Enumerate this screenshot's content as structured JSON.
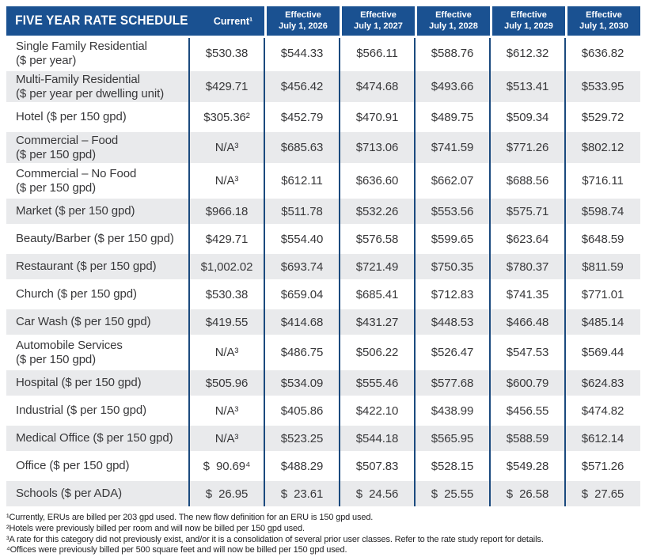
{
  "title": "FIVE YEAR RATE SCHEDULE",
  "columns": {
    "current_label": "Current¹",
    "effective": [
      {
        "line1": "Effective",
        "line2": "July 1, 2026"
      },
      {
        "line1": "Effective",
        "line2": "July 1, 2027"
      },
      {
        "line1": "Effective",
        "line2": "July 1, 2028"
      },
      {
        "line1": "Effective",
        "line2": "July 1, 2029"
      },
      {
        "line1": "Effective",
        "line2": "July 1, 2030"
      }
    ]
  },
  "rows": [
    {
      "label_lines": [
        "Single Family Residential",
        "($ per year)"
      ],
      "values": [
        "$530.38",
        "$544.33",
        "$566.11",
        "$588.76",
        "$612.32",
        "$636.82"
      ]
    },
    {
      "label_lines": [
        "Multi-Family Residential",
        "($ per year per dwelling unit)"
      ],
      "values": [
        "$429.71",
        "$456.42",
        "$474.68",
        "$493.66",
        "$513.41",
        "$533.95"
      ]
    },
    {
      "label_lines": [
        "Hotel ($ per 150 gpd)"
      ],
      "values": [
        "$305.36²",
        "$452.79",
        "$470.91",
        "$489.75",
        "$509.34",
        "$529.72"
      ]
    },
    {
      "label_lines": [
        "Commercial – Food",
        "($ per 150 gpd)"
      ],
      "values": [
        "N/A³",
        "$685.63",
        "$713.06",
        "$741.59",
        "$771.26",
        "$802.12"
      ]
    },
    {
      "label_lines": [
        "Commercial – No Food",
        "($ per 150 gpd)"
      ],
      "values": [
        "N/A³",
        "$612.11",
        "$636.60",
        "$662.07",
        "$688.56",
        "$716.11"
      ]
    },
    {
      "label_lines": [
        "Market ($ per 150 gpd)"
      ],
      "values": [
        "$966.18",
        "$511.78",
        "$532.26",
        "$553.56",
        "$575.71",
        "$598.74"
      ]
    },
    {
      "label_lines": [
        "Beauty/Barber ($ per 150 gpd)"
      ],
      "values": [
        "$429.71",
        "$554.40",
        "$576.58",
        "$599.65",
        "$623.64",
        "$648.59"
      ]
    },
    {
      "label_lines": [
        "Restaurant ($ per 150 gpd)"
      ],
      "values": [
        "$1,002.02",
        "$693.74",
        "$721.49",
        "$750.35",
        "$780.37",
        "$811.59"
      ]
    },
    {
      "label_lines": [
        "Church ($ per 150 gpd)"
      ],
      "values": [
        "$530.38",
        "$659.04",
        "$685.41",
        "$712.83",
        "$741.35",
        "$771.01"
      ]
    },
    {
      "label_lines": [
        "Car Wash ($ per 150 gpd)"
      ],
      "values": [
        "$419.55",
        "$414.68",
        "$431.27",
        "$448.53",
        "$466.48",
        "$485.14"
      ]
    },
    {
      "label_lines": [
        "Automobile Services",
        "($ per 150 gpd)"
      ],
      "values": [
        "N/A³",
        "$486.75",
        "$506.22",
        "$526.47",
        "$547.53",
        "$569.44"
      ]
    },
    {
      "label_lines": [
        "Hospital ($ per 150 gpd)"
      ],
      "values": [
        "$505.96",
        "$534.09",
        "$555.46",
        "$577.68",
        "$600.79",
        "$624.83"
      ]
    },
    {
      "label_lines": [
        "Industrial ($ per 150 gpd)"
      ],
      "values": [
        "N/A³",
        "$405.86",
        "$422.10",
        "$438.99",
        "$456.55",
        "$474.82"
      ]
    },
    {
      "label_lines": [
        "Medical Office ($ per 150 gpd)"
      ],
      "values": [
        "N/A³",
        "$523.25",
        "$544.18",
        "$565.95",
        "$588.59",
        "$612.14"
      ]
    },
    {
      "label_lines": [
        "Office ($ per 150 gpd)"
      ],
      "values": [
        "$  90.69⁴",
        "$488.29",
        "$507.83",
        "$528.15",
        "$549.28",
        "$571.26"
      ]
    },
    {
      "label_lines": [
        "Schools ($ per ADA)"
      ],
      "values": [
        "$  26.95",
        "$  23.61",
        "$  24.56",
        "$  25.55",
        "$  26.58",
        "$  27.65"
      ]
    }
  ],
  "footnotes": [
    "¹Currently, ERUs are billed per 203 gpd used. The new flow definition for an ERU is 150 gpd used.",
    "²Hotels were previously billed per room and will now be billed per 150 gpd used.",
    "³A rate for this category did not previously exist, and/or it is a consolidation of several prior user classes. Refer to the rate study report for details.",
    "⁴Offices were previously billed per 500 square feet and will now be billed per 150 gpd used."
  ],
  "colors": {
    "header_blue": "#1a5191",
    "divider_blue": "#1b4a7e",
    "stripe_gray": "#e9eaec",
    "body_text": "#38383a"
  }
}
